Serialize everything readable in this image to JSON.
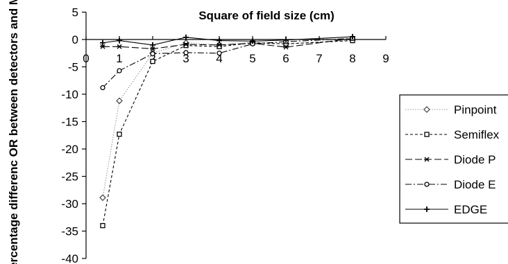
{
  "chart_data": {
    "type": "line",
    "title": "",
    "xlabel": "Square of field size (cm)",
    "ylabel": "Percentage differenc OR between detectors and MC",
    "xlim": [
      0,
      9
    ],
    "ylim": [
      -40,
      5
    ],
    "xticks": [
      0,
      1,
      2,
      3,
      4,
      5,
      6,
      7,
      8,
      9
    ],
    "yticks": [
      5,
      0,
      -5,
      -10,
      -15,
      -20,
      -25,
      -30,
      -35,
      -40
    ],
    "grid": false,
    "legend_position": "right",
    "series": [
      {
        "name": "Pinpoint",
        "marker": "diamond",
        "dash": "1.5,2",
        "color": "#999999",
        "x": [
          0.5,
          1,
          2,
          3,
          4,
          5,
          6,
          8
        ],
        "y": [
          -28.9,
          -11.2,
          -2.5,
          -0.6,
          -1.0,
          -0.5,
          -0.8,
          -0.1
        ]
      },
      {
        "name": "Semiflex",
        "marker": "square",
        "dash": "4,3",
        "color": "#000000",
        "x": [
          0.5,
          1,
          2,
          3,
          4,
          5,
          6,
          8
        ],
        "y": [
          -34.0,
          -17.3,
          -4.0,
          -1.1,
          -1.3,
          -0.6,
          -0.8,
          -0.2
        ]
      },
      {
        "name": "Diode P",
        "marker": "star",
        "dash": "10,4",
        "color": "#000000",
        "x": [
          0.5,
          1,
          2,
          3,
          4,
          5,
          6,
          8
        ],
        "y": [
          -1.3,
          -1.3,
          -1.7,
          -0.9,
          -1.0,
          -0.7,
          -1.4,
          0.2
        ]
      },
      {
        "name": "Diode E",
        "marker": "circle",
        "dash": "9,3,2,3",
        "color": "#000000",
        "x": [
          0.5,
          1,
          2,
          3,
          4,
          5,
          6,
          8
        ],
        "y": [
          -8.8,
          -5.7,
          -2.6,
          -2.4,
          -2.5,
          -0.8,
          -0.4,
          0.2
        ]
      },
      {
        "name": "EDGE",
        "marker": "plus",
        "dash": "",
        "color": "#000000",
        "x": [
          0.5,
          1,
          2,
          3,
          4,
          5,
          6,
          8
        ],
        "y": [
          -0.6,
          -0.2,
          -1.0,
          0.4,
          -0.2,
          -0.3,
          -0.1,
          0.5
        ]
      }
    ]
  }
}
